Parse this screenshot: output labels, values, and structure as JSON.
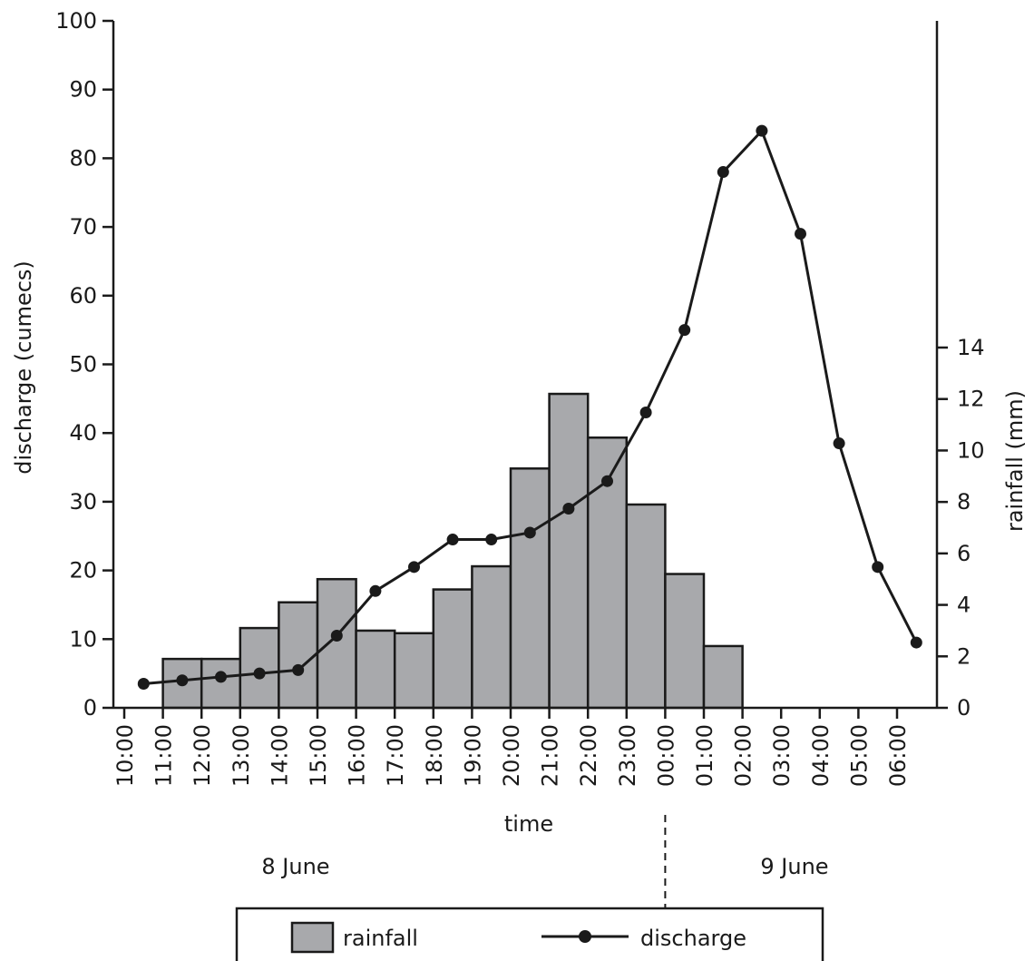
{
  "chart_data": {
    "type": "bar+line",
    "x_categories": [
      "10:00",
      "11:00",
      "12:00",
      "13:00",
      "14:00",
      "15:00",
      "16:00",
      "17:00",
      "18:00",
      "19:00",
      "20:00",
      "21:00",
      "22:00",
      "23:00",
      "00:00",
      "01:00",
      "02:00",
      "03:00",
      "04:00",
      "05:00",
      "06:00"
    ],
    "xlabel": "time",
    "date_labels": [
      {
        "text": "8 June",
        "before_divider": true
      },
      {
        "text": "9 June",
        "before_divider": false
      }
    ],
    "date_divider_at": "00:00",
    "left_axis": {
      "label": "discharge (cumecs)",
      "ylim": [
        0,
        100
      ],
      "ticks": [
        0,
        10,
        20,
        30,
        40,
        50,
        60,
        70,
        80,
        90,
        100
      ]
    },
    "right_axis": {
      "label": "rainfall (mm)",
      "ylim": [
        0,
        14
      ],
      "ticks": [
        0,
        2,
        4,
        6,
        8,
        10,
        12,
        14
      ]
    },
    "series": [
      {
        "name": "rainfall",
        "type": "bar",
        "axis": "right",
        "color": "#a8a9ac",
        "intervals": [
          {
            "start": "11:00",
            "end": "12:00",
            "value": 1.9
          },
          {
            "start": "12:00",
            "end": "13:00",
            "value": 1.9
          },
          {
            "start": "13:00",
            "end": "14:00",
            "value": 3.1
          },
          {
            "start": "14:00",
            "end": "15:00",
            "value": 4.1
          },
          {
            "start": "15:00",
            "end": "16:00",
            "value": 5.0
          },
          {
            "start": "16:00",
            "end": "17:00",
            "value": 3.0
          },
          {
            "start": "17:00",
            "end": "18:00",
            "value": 2.9
          },
          {
            "start": "18:00",
            "end": "19:00",
            "value": 4.6
          },
          {
            "start": "19:00",
            "end": "20:00",
            "value": 5.5
          },
          {
            "start": "20:00",
            "end": "21:00",
            "value": 9.3
          },
          {
            "start": "21:00",
            "end": "22:00",
            "value": 12.2
          },
          {
            "start": "22:00",
            "end": "23:00",
            "value": 10.5
          },
          {
            "start": "23:00",
            "end": "00:00",
            "value": 7.9
          },
          {
            "start": "00:00",
            "end": "01:00",
            "value": 5.2
          },
          {
            "start": "01:00",
            "end": "02:00",
            "value": 2.4
          }
        ]
      },
      {
        "name": "discharge",
        "type": "line",
        "axis": "left",
        "color": "#1a1a1a",
        "points": [
          {
            "x": "10:30",
            "y": 3.5
          },
          {
            "x": "11:30",
            "y": 4.0
          },
          {
            "x": "12:30",
            "y": 4.5
          },
          {
            "x": "13:30",
            "y": 5.0
          },
          {
            "x": "14:30",
            "y": 5.5
          },
          {
            "x": "15:30",
            "y": 10.5
          },
          {
            "x": "16:30",
            "y": 17.0
          },
          {
            "x": "17:30",
            "y": 20.5
          },
          {
            "x": "18:30",
            "y": 24.5
          },
          {
            "x": "19:30",
            "y": 24.5
          },
          {
            "x": "20:30",
            "y": 25.5
          },
          {
            "x": "21:30",
            "y": 29.0
          },
          {
            "x": "22:30",
            "y": 33.0
          },
          {
            "x": "23:30",
            "y": 43.0
          },
          {
            "x": "00:30",
            "y": 55.0
          },
          {
            "x": "01:30",
            "y": 78.0
          },
          {
            "x": "02:30",
            "y": 84.0
          },
          {
            "x": "03:30",
            "y": 69.0
          },
          {
            "x": "04:30",
            "y": 38.5
          },
          {
            "x": "05:30",
            "y": 20.5
          },
          {
            "x": "06:30",
            "y": 9.5
          }
        ]
      }
    ],
    "legend": {
      "position": "bottom",
      "entries": [
        {
          "label": "rainfall",
          "kind": "bar"
        },
        {
          "label": "discharge",
          "kind": "line"
        }
      ]
    },
    "grid": false
  }
}
